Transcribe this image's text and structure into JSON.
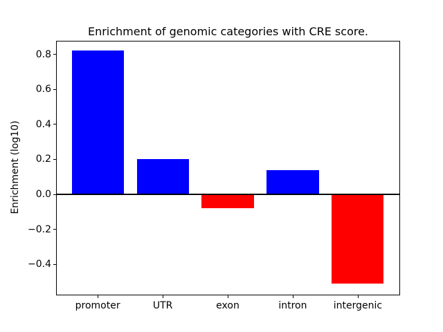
{
  "figure": {
    "background": "#ffffff"
  },
  "chart_data": {
    "type": "bar",
    "title": "Enrichment of genomic categories with CRE score.",
    "xlabel": "",
    "ylabel": "Enrichment (log10)",
    "categories": [
      "promoter",
      "UTR",
      "exon",
      "intron",
      "intergenic"
    ],
    "values": [
      0.82,
      0.2,
      -0.08,
      0.14,
      -0.51
    ],
    "bar_colors": [
      "#0000ff",
      "#0000ff",
      "#ff0000",
      "#0000ff",
      "#ff0000"
    ],
    "positive_color": "#0000ff",
    "negative_color": "#ff0000",
    "axis_color": "#000000",
    "text_color": "#000000",
    "bar_width": 0.8,
    "grid": false,
    "legend": false,
    "zero_line": true,
    "ylim": [
      -0.573,
      0.877
    ],
    "xlim": [
      -0.64,
      4.64
    ],
    "yticks": [
      {
        "value": 0.8,
        "label": "0.8"
      },
      {
        "value": 0.6,
        "label": "0.6"
      },
      {
        "value": 0.4,
        "label": "0.4"
      },
      {
        "value": 0.2,
        "label": "0.2"
      },
      {
        "value": 0.0,
        "label": "0.0"
      },
      {
        "value": -0.2,
        "label": "−0.2"
      },
      {
        "value": -0.4,
        "label": "−0.4"
      }
    ]
  }
}
